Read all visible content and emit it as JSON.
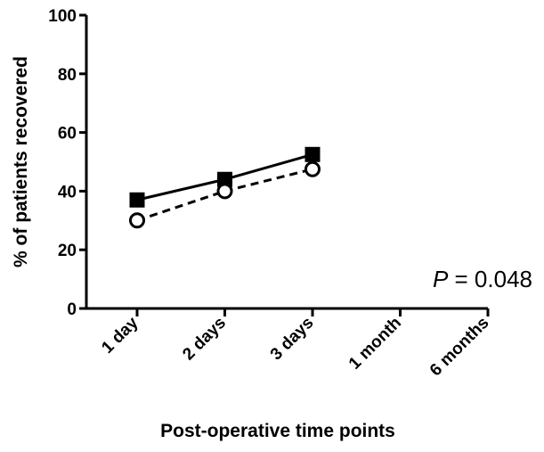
{
  "chart_data": {
    "type": "line",
    "title": "",
    "xlabel": "Post-operative time points",
    "ylabel": "% of patients recovered",
    "categories": [
      "1 day",
      "2 days",
      "3 days",
      "1 month",
      "6 months"
    ],
    "ylim": [
      0,
      100
    ],
    "yticks": [
      "0",
      "20",
      "40",
      "60",
      "80",
      "100"
    ],
    "grid": false,
    "legend": "none",
    "series": [
      {
        "marker": "filled-square",
        "line": "solid",
        "color": "#000000",
        "values": [
          37,
          44,
          52.5,
          null,
          null
        ]
      },
      {
        "marker": "open-circle",
        "line": "dashed",
        "color": "#000000",
        "values": [
          30,
          40,
          47.5,
          null,
          null
        ]
      }
    ],
    "annotation": {
      "p_label": "P",
      "p_text": " = 0.048"
    }
  }
}
